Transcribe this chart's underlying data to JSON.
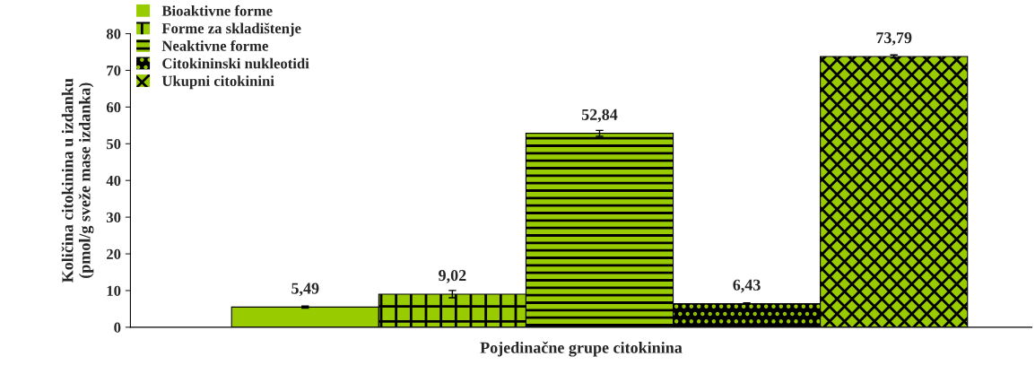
{
  "chart_data": {
    "type": "bar",
    "xlabel": "Pojedinačne grupe citokinina",
    "ylabel": "Količina citokinina u izdanku\n(pmol/g sveže mase izdanka)",
    "categories": [
      null
    ],
    "series": [
      {
        "name": "Bioaktivne forme",
        "color": "#99cc00",
        "values": [
          5.49
        ],
        "errors": [
          0.3
        ],
        "value_labels": [
          "5,49"
        ]
      },
      {
        "name": "Forme za skladištenje",
        "color": "#99cc00",
        "values": [
          9.02
        ],
        "errors": [
          1.0
        ],
        "value_labels": [
          "9,02"
        ]
      },
      {
        "name": "Neaktivne forme",
        "color": "#99cc00",
        "values": [
          52.84
        ],
        "errors": [
          0.8
        ],
        "value_labels": [
          "52,84"
        ]
      },
      {
        "name": "Citokininski nukleotidi",
        "color": "#000000",
        "values": [
          6.43
        ],
        "errors": [
          0.2
        ],
        "value_labels": [
          "6,43"
        ]
      },
      {
        "name": "Ukupni citokinini",
        "color": "#99cc00",
        "values": [
          73.79
        ],
        "errors": [
          0.4
        ],
        "value_labels": [
          "73,79"
        ]
      }
    ],
    "ylim": [
      0,
      80
    ],
    "yticks": [
      0,
      10,
      20,
      30,
      40,
      50,
      60,
      70,
      80
    ],
    "grid": false,
    "legend": "top left"
  }
}
